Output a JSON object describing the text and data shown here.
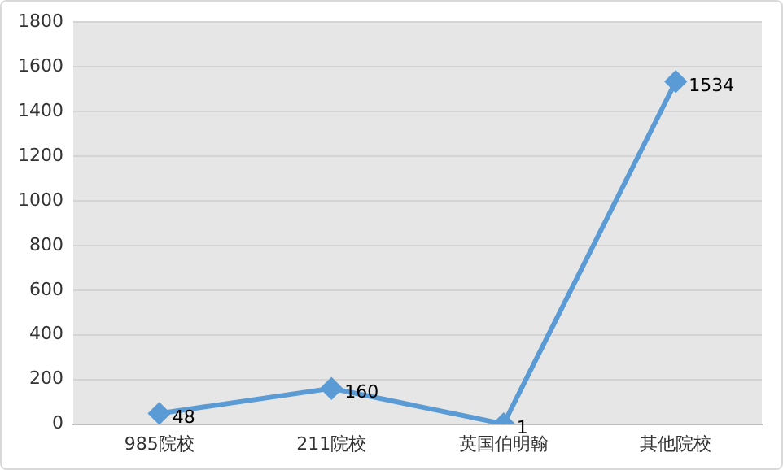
{
  "chart_data": {
    "type": "line",
    "categories": [
      "985院校",
      "211院校",
      "英国伯明翰",
      "其他院校"
    ],
    "series": [
      {
        "color": "#5b9bd5",
        "values": [
          48,
          160,
          1,
          1534
        ]
      }
    ],
    "ylim": [
      0,
      1800
    ],
    "yticks": [
      0,
      200,
      400,
      600,
      800,
      1000,
      1200,
      1400,
      1600,
      1800
    ],
    "grid": "y",
    "legend": false,
    "marker": "diamond",
    "line_style": "solid",
    "data_labels": true
  }
}
